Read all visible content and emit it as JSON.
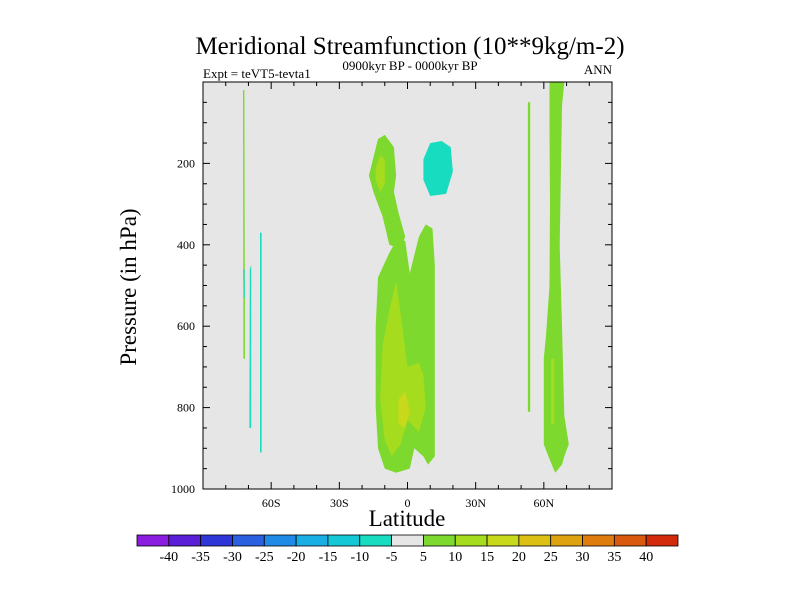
{
  "chart_data": {
    "type": "contour",
    "title": "Meridional Streamfunction (10**9kg/m-2)",
    "left_string": "Expt = teVT5-tevta1",
    "center_string": "0900kyr BP - 0000kyr BP",
    "right_string": "ANN",
    "xlabel": "Latitude",
    "ylabel": "Pressure (in hPa)",
    "xlim": [
      -90,
      90
    ],
    "ylim": [
      1000,
      0
    ],
    "x_ticks": [
      {
        "value": -60,
        "label": "60S"
      },
      {
        "value": -30,
        "label": "30S"
      },
      {
        "value": 0,
        "label": "0"
      },
      {
        "value": 30,
        "label": "30N"
      },
      {
        "value": 60,
        "label": "60N"
      }
    ],
    "y_ticks": [
      {
        "value": 200,
        "label": "200"
      },
      {
        "value": 400,
        "label": "400"
      },
      {
        "value": 600,
        "label": "600"
      },
      {
        "value": 800,
        "label": "800"
      },
      {
        "value": 1000,
        "label": "1000"
      }
    ],
    "background_color": "#e6e6e6",
    "colorbar": {
      "levels": [
        "-40",
        "-35",
        "-30",
        "-25",
        "-20",
        "-15",
        "-10",
        "-5",
        "5",
        "10",
        "15",
        "20",
        "25",
        "30",
        "35",
        "40"
      ],
      "colors": [
        "#8a1de0",
        "#5a1fd6",
        "#2f36d8",
        "#2a5fe0",
        "#1f8be6",
        "#19aee4",
        "#15c8d6",
        "#18dcc0",
        "#e6e6e6",
        "#7dd92e",
        "#a6dc1e",
        "#c8d81a",
        "#dcc114",
        "#dea10f",
        "#de7d0e",
        "#d95a0f",
        "#d42a0c"
      ]
    },
    "regions": [
      {
        "name": "positive 5-10 band near 72S",
        "class": "5 to 10",
        "color": "#7dd92e",
        "points": [
          [
            -72.4,
            20
          ],
          [
            -71.8,
            20
          ],
          [
            -71.5,
            680
          ],
          [
            -72.2,
            680
          ]
        ]
      },
      {
        "name": "negative -5 thin band 72S",
        "class": "-10 to -5",
        "color": "#18dcc0",
        "points": [
          [
            -72.3,
            460
          ],
          [
            -71.7,
            460
          ],
          [
            -71.6,
            530
          ],
          [
            -72.1,
            530
          ]
        ]
      },
      {
        "name": "negative -5 band 68S",
        "class": "-10 to -5",
        "color": "#18dcc0",
        "points": [
          [
            -69.4,
            460
          ],
          [
            -68.8,
            450
          ],
          [
            -68.8,
            850
          ],
          [
            -69.6,
            850
          ]
        ]
      },
      {
        "name": "negative -5 band 64S",
        "class": "-10 to -5",
        "color": "#18dcc0",
        "points": [
          [
            -64.9,
            370
          ],
          [
            -64.2,
            370
          ],
          [
            -64.2,
            910
          ],
          [
            -64.9,
            910
          ]
        ]
      },
      {
        "name": "upper tropical positive 5-10",
        "class": "5 to 10",
        "color": "#7dd92e",
        "points": [
          [
            -17,
            230
          ],
          [
            -13,
            140
          ],
          [
            -10,
            130
          ],
          [
            -6,
            160
          ],
          [
            -5,
            230
          ],
          [
            -6,
            270
          ],
          [
            -4,
            320
          ],
          [
            -1,
            380
          ],
          [
            -3,
            410
          ],
          [
            -8,
            400
          ],
          [
            -11,
            330
          ],
          [
            -15,
            270
          ]
        ]
      },
      {
        "name": "upper tropical positive 10-15",
        "class": "10 to 15",
        "color": "#a6dc1e",
        "points": [
          [
            -14,
            210
          ],
          [
            -12,
            180
          ],
          [
            -10,
            190
          ],
          [
            -10,
            250
          ],
          [
            -12,
            270
          ],
          [
            -14,
            240
          ]
        ]
      },
      {
        "name": "upper tropical negative -10 to -5",
        "class": "-10 to -5",
        "color": "#18dcc0",
        "points": [
          [
            7,
            190
          ],
          [
            10,
            150
          ],
          [
            15,
            145
          ],
          [
            19,
            160
          ],
          [
            20,
            220
          ],
          [
            17,
            275
          ],
          [
            10,
            280
          ],
          [
            7,
            240
          ]
        ]
      },
      {
        "name": "lower tropical positive 5-10",
        "class": "5 to 10",
        "color": "#7dd92e",
        "points": [
          [
            -8,
            420
          ],
          [
            -5,
            390
          ],
          [
            -1,
            390
          ],
          [
            1,
            470
          ],
          [
            5,
            380
          ],
          [
            8,
            350
          ],
          [
            11,
            360
          ],
          [
            12,
            450
          ],
          [
            12,
            600
          ],
          [
            12,
            800
          ],
          [
            12,
            920
          ],
          [
            9,
            940
          ],
          [
            7,
            920
          ],
          [
            3,
            900
          ],
          [
            1,
            950
          ],
          [
            -5,
            960
          ],
          [
            -10,
            950
          ],
          [
            -13,
            900
          ],
          [
            -14,
            800
          ],
          [
            -14,
            600
          ],
          [
            -13,
            480
          ]
        ]
      },
      {
        "name": "lower tropical positive 10-15",
        "class": "10 to 15",
        "color": "#a6dc1e",
        "points": [
          [
            -8,
            560
          ],
          [
            -5,
            490
          ],
          [
            -3,
            570
          ],
          [
            0,
            700
          ],
          [
            5,
            690
          ],
          [
            7,
            720
          ],
          [
            8,
            800
          ],
          [
            5,
            860
          ],
          [
            0,
            830
          ],
          [
            -3,
            890
          ],
          [
            -7,
            920
          ],
          [
            -10,
            880
          ],
          [
            -12,
            780
          ],
          [
            -11,
            650
          ]
        ]
      },
      {
        "name": "lower tropical positive 15-20 core",
        "class": "15 to 20",
        "color": "#c8d81a",
        "points": [
          [
            -4,
            780
          ],
          [
            -1,
            760
          ],
          [
            1,
            810
          ],
          [
            -1,
            850
          ],
          [
            -4,
            840
          ]
        ]
      },
      {
        "name": "50N thin positive band",
        "class": "5 to 10",
        "color": "#7dd92e",
        "points": [
          [
            53,
            50
          ],
          [
            54,
            50
          ],
          [
            54,
            810
          ],
          [
            53,
            810
          ]
        ]
      },
      {
        "name": "60N positive band",
        "class": "5 to 10",
        "color": "#7dd92e",
        "points": [
          [
            62.5,
            0
          ],
          [
            69,
            0
          ],
          [
            68,
            60
          ],
          [
            67,
            400
          ],
          [
            68,
            600
          ],
          [
            69,
            820
          ],
          [
            71,
            890
          ],
          [
            69,
            920
          ],
          [
            68,
            940
          ],
          [
            65,
            960
          ],
          [
            62,
            920
          ],
          [
            60,
            890
          ],
          [
            60,
            680
          ],
          [
            61,
            620
          ],
          [
            62.5,
            500
          ],
          [
            62.7,
            300
          ],
          [
            62.5,
            120
          ]
        ]
      },
      {
        "name": "60N positive 10-15 strip",
        "class": "10 to 15",
        "color": "#a6dc1e",
        "points": [
          [
            63.2,
            680
          ],
          [
            64.6,
            680
          ],
          [
            64.6,
            840
          ],
          [
            63.2,
            840
          ]
        ]
      }
    ]
  }
}
